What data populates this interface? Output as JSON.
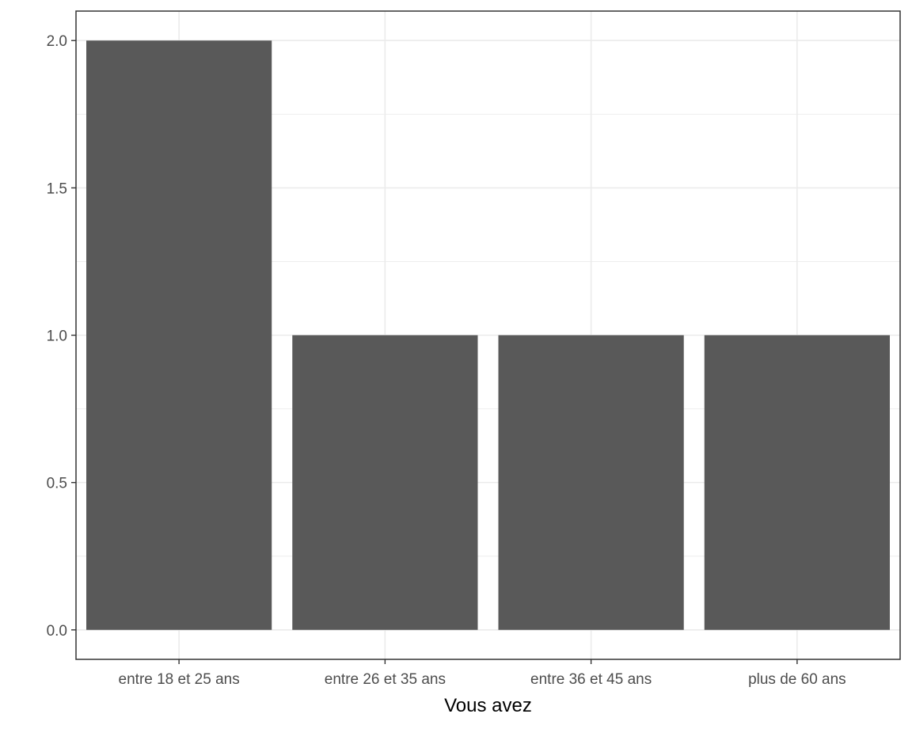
{
  "chart_data": {
    "type": "bar",
    "categories": [
      "entre 18 et 25 ans",
      "entre 26 et 35 ans",
      "entre 36 et 45 ans",
      "plus de 60 ans"
    ],
    "values": [
      2,
      1,
      1,
      1
    ],
    "xlabel": "Vous avez",
    "ylabel": "",
    "ylim": [
      -0.1,
      2.1
    ],
    "yticks": [
      0,
      0.5,
      1,
      1.5,
      2
    ],
    "ytick_labels": [
      "0.0",
      "0.5",
      "1.0",
      "1.5",
      "2.0"
    ],
    "grid": true,
    "bar_color": "#595959",
    "grid_color": "#ebebeb",
    "border_color": "#333333"
  }
}
